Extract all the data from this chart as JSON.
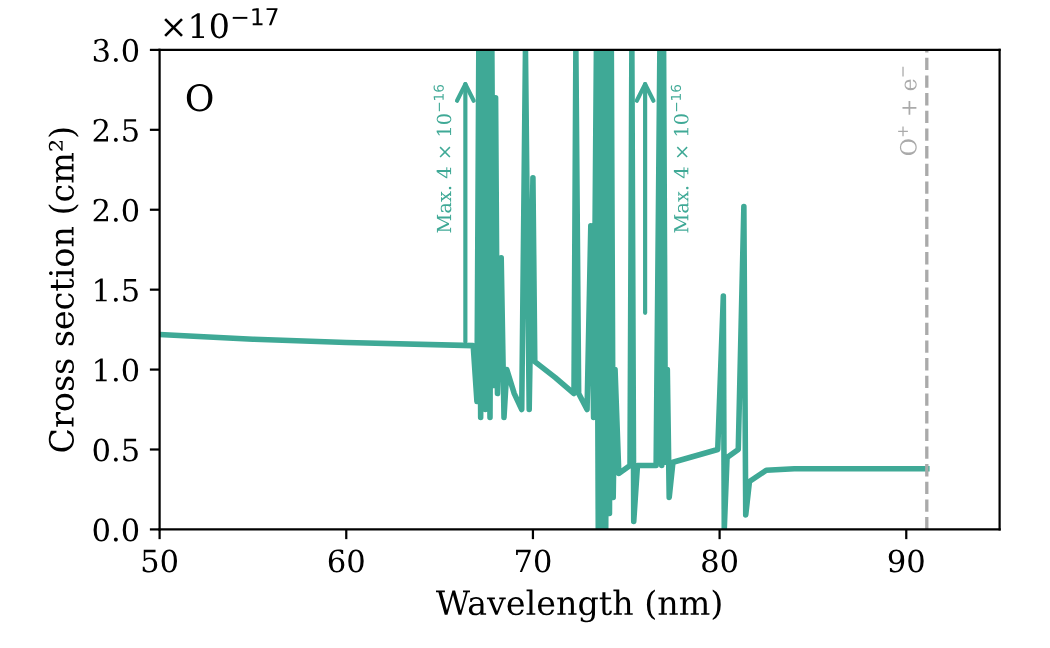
{
  "chart_data": {
    "type": "line",
    "xlabel": "Wavelength (nm)",
    "ylabel": "Cross section (cm²)",
    "x": [
      50,
      55,
      60,
      66.8,
      67.0,
      67.1,
      67.2,
      67.3,
      67.45,
      67.55,
      67.7,
      67.8,
      67.9,
      68.0,
      68.1,
      68.3,
      68.45,
      68.6,
      69.0,
      69.4,
      69.6,
      69.8,
      70.0,
      70.1,
      71.2,
      72.2,
      72.3,
      72.45,
      72.9,
      73.1,
      73.25,
      73.4,
      73.5,
      73.6,
      73.7,
      73.8,
      73.9,
      74.0,
      74.1,
      74.2,
      74.3,
      74.4,
      74.6,
      75.2,
      75.3,
      75.4,
      75.6,
      76.6,
      76.8,
      76.9,
      77.0,
      77.1,
      77.2,
      77.3,
      77.5,
      79.9,
      80.2,
      80.25,
      80.4,
      81.0,
      81.3,
      81.4,
      81.6,
      82.5,
      84,
      91.1
    ],
    "series": [
      {
        "color": "#3fa996",
        "values": [
          1.22,
          1.19,
          1.17,
          1.15,
          0.8,
          3.0,
          0.7,
          3.0,
          0.75,
          3.0,
          0.7,
          3.0,
          0.9,
          2.7,
          0.85,
          1.7,
          0.7,
          1.0,
          0.85,
          0.75,
          3.0,
          0.75,
          2.2,
          1.05,
          0.95,
          0.85,
          3.0,
          0.85,
          0.75,
          1.9,
          0.7,
          3.0,
          0.0,
          3.0,
          0.0,
          3.0,
          0.0,
          3.0,
          0.1,
          3.0,
          0.2,
          1.0,
          0.35,
          0.4,
          3.0,
          0.05,
          0.4,
          0.4,
          3.0,
          0.4,
          3.0,
          0.42,
          1.0,
          0.2,
          0.42,
          0.5,
          1.46,
          0.0,
          0.45,
          0.5,
          2.02,
          0.09,
          0.3,
          0.37,
          0.38,
          0.38
        ]
      }
    ],
    "xlim": [
      50,
      95
    ],
    "xticks": [
      50,
      60,
      70,
      80,
      90
    ],
    "ylim": [
      0,
      3.0
    ],
    "yticks": [
      {
        "value": 0,
        "label": "0.0"
      },
      0.5,
      {
        "value": 1,
        "label": "1.0"
      },
      1.5,
      {
        "value": 2,
        "label": "2.0"
      },
      2.5,
      {
        "value": 3,
        "label": "3.0"
      }
    ],
    "ref_lines": [
      {
        "axis": "x",
        "value": 91.1,
        "label": "O$^{+}$ + e$^{−}$",
        "color": "#aaaaaa",
        "line_style": "dashed"
      }
    ],
    "annotations": [
      "O",
      "×10$^{−17}$",
      "Max. 4 × 10$^{−16}$",
      "Max. 4 × 10$^{−16}$"
    ],
    "grid": false,
    "legend": false,
    "marker": "none",
    "line_style": "solid"
  }
}
